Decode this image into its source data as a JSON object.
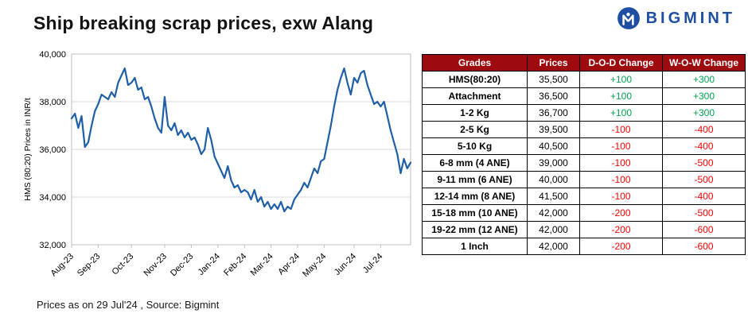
{
  "header": {
    "title": "Ship breaking scrap prices, exw Alang",
    "brand": "BIGMINT"
  },
  "chart_data": {
    "type": "line",
    "title": "",
    "xlabel": "",
    "ylabel": "HMS (80:20) Prices in INR/t",
    "ylim": [
      32000,
      40000
    ],
    "yticks": [
      32000,
      34000,
      36000,
      38000,
      40000
    ],
    "grid": true,
    "legend": false,
    "line_color": "#1F5FA8",
    "x_tick_labels": [
      "Aug-23",
      "Sep-23",
      "Oct-23",
      "Nov-23",
      "Dec-23",
      "Jan-24",
      "Feb-24",
      "Mar-24",
      "Apr-24",
      "May-24",
      "Jun-24",
      "Jul-24"
    ],
    "x_tick_indices": [
      0,
      8,
      18,
      28,
      36,
      44,
      52,
      60,
      68,
      76,
      85,
      93
    ],
    "series": [
      {
        "name": "HMS (80:20) exw Alang",
        "values": [
          37300,
          37500,
          36900,
          37400,
          36100,
          36300,
          37000,
          37600,
          37900,
          38300,
          38200,
          38100,
          38400,
          38200,
          38800,
          39100,
          39400,
          38700,
          38800,
          39000,
          38500,
          38600,
          38100,
          38200,
          37800,
          37300,
          36900,
          36700,
          38200,
          37000,
          36800,
          37100,
          36600,
          36800,
          36500,
          36700,
          36400,
          36500,
          36200,
          35800,
          36000,
          36900,
          36400,
          35700,
          35400,
          35100,
          34800,
          35300,
          34700,
          34400,
          34500,
          34200,
          34300,
          34200,
          33900,
          34300,
          33800,
          34000,
          33600,
          33800,
          33500,
          33700,
          33500,
          33800,
          33400,
          33600,
          33500,
          33900,
          34100,
          34300,
          34600,
          34400,
          34800,
          35200,
          35000,
          35500,
          35600,
          36300,
          37000,
          37800,
          38500,
          39000,
          39400,
          38800,
          38300,
          39000,
          38800,
          39200,
          39300,
          38700,
          38300,
          37900,
          38000,
          37800,
          38000,
          37400,
          36800,
          36300,
          35800,
          35000,
          35600,
          35200,
          35450
        ]
      }
    ]
  },
  "table": {
    "headers": [
      "Grades",
      "Prices",
      "D-O-D Change",
      "W-O-W Change"
    ],
    "rows": [
      {
        "grade": "HMS(80:20)",
        "price": "35,500",
        "dod": "+100",
        "wow": "+300"
      },
      {
        "grade": "Attachment",
        "price": "36,500",
        "dod": "+100",
        "wow": "+300"
      },
      {
        "grade": "1-2 Kg",
        "price": "36,700",
        "dod": "+100",
        "wow": "+300"
      },
      {
        "grade": "2-5 Kg",
        "price": "39,500",
        "dod": "-100",
        "wow": "-400"
      },
      {
        "grade": "5-10 Kg",
        "price": "40,500",
        "dod": "-100",
        "wow": "-400"
      },
      {
        "grade": "6-8 mm (4 ANE)",
        "price": "39,000",
        "dod": "-100",
        "wow": "-500"
      },
      {
        "grade": "9-11 mm (6 ANE)",
        "price": "40,000",
        "dod": "-100",
        "wow": "-500"
      },
      {
        "grade": "12-14 mm (8 ANE)",
        "price": "41,500",
        "dod": "-100",
        "wow": "-400"
      },
      {
        "grade": "15-18 mm (10 ANE)",
        "price": "42,000",
        "dod": "-200",
        "wow": "-500"
      },
      {
        "grade": "19-22 mm (12 ANE)",
        "price": "42,000",
        "dod": "-200",
        "wow": "-600"
      },
      {
        "grade": "1 Inch",
        "price": "42,000",
        "dod": "-200",
        "wow": "-600"
      }
    ]
  },
  "footer": {
    "note": "Prices as on 29 Jul'24 , Source: Bigmint"
  },
  "colors": {
    "positive": "#00A651",
    "negative": "#FF0000",
    "header_bg": "#9E0B0F",
    "accent_blue": "#1E4FA3",
    "line_blue": "#1F5FA8",
    "gridline": "#D9D9D9"
  }
}
